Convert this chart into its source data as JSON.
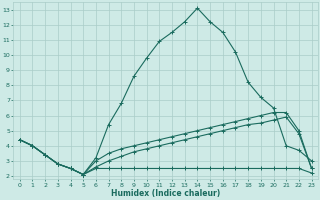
{
  "xlabel": "Humidex (Indice chaleur)",
  "bg_color": "#ceeae6",
  "grid_color": "#aacdc8",
  "line_color": "#1a6b5e",
  "xlim": [
    -0.5,
    23.5
  ],
  "ylim": [
    1.8,
    13.5
  ],
  "xticks": [
    0,
    1,
    2,
    3,
    4,
    5,
    6,
    7,
    8,
    9,
    10,
    11,
    12,
    13,
    14,
    15,
    16,
    17,
    18,
    19,
    20,
    21,
    22,
    23
  ],
  "yticks": [
    2,
    3,
    4,
    5,
    6,
    7,
    8,
    9,
    10,
    11,
    12,
    13
  ],
  "line1_x": [
    0,
    1,
    2,
    3,
    4,
    5,
    6,
    7,
    8,
    9,
    10,
    11,
    12,
    13,
    14,
    15,
    16,
    17,
    18,
    19,
    20,
    21,
    22,
    23
  ],
  "line1_y": [
    4.4,
    4.0,
    3.4,
    2.8,
    2.5,
    2.1,
    3.2,
    5.4,
    6.8,
    8.6,
    9.8,
    10.9,
    11.5,
    12.2,
    13.1,
    12.2,
    11.5,
    10.2,
    8.2,
    7.2,
    6.5,
    4.0,
    3.7,
    3.0
  ],
  "line2_x": [
    0,
    1,
    2,
    3,
    4,
    5,
    6,
    7,
    8,
    9,
    10,
    11,
    12,
    13,
    14,
    15,
    16,
    17,
    18,
    19,
    20,
    21,
    22,
    23
  ],
  "line2_y": [
    4.4,
    4.0,
    3.4,
    2.8,
    2.5,
    2.1,
    2.5,
    2.5,
    2.5,
    2.5,
    2.5,
    2.5,
    2.5,
    2.5,
    2.5,
    2.5,
    2.5,
    2.5,
    2.5,
    2.5,
    2.5,
    2.5,
    2.5,
    2.2
  ],
  "line3_x": [
    0,
    1,
    2,
    3,
    4,
    5,
    6,
    7,
    8,
    9,
    10,
    11,
    12,
    13,
    14,
    15,
    16,
    17,
    18,
    19,
    20,
    21,
    22,
    23
  ],
  "line3_y": [
    4.4,
    4.0,
    3.4,
    2.8,
    2.5,
    2.1,
    2.6,
    3.0,
    3.3,
    3.6,
    3.8,
    4.0,
    4.2,
    4.4,
    4.6,
    4.8,
    5.0,
    5.2,
    5.4,
    5.5,
    5.7,
    5.9,
    4.8,
    2.5
  ],
  "line4_x": [
    0,
    1,
    2,
    3,
    4,
    5,
    6,
    7,
    8,
    9,
    10,
    11,
    12,
    13,
    14,
    15,
    16,
    17,
    18,
    19,
    20,
    21,
    22,
    23
  ],
  "line4_y": [
    4.4,
    4.0,
    3.4,
    2.8,
    2.5,
    2.1,
    3.0,
    3.5,
    3.8,
    4.0,
    4.2,
    4.4,
    4.6,
    4.8,
    5.0,
    5.2,
    5.4,
    5.6,
    5.8,
    6.0,
    6.2,
    6.2,
    5.0,
    2.5
  ],
  "marker_x1": [
    0,
    1,
    2,
    3,
    5,
    6,
    7,
    8,
    9,
    10,
    11,
    12,
    13,
    14,
    15,
    16,
    17,
    18,
    19,
    20,
    21,
    22,
    23
  ],
  "marker_y1": [
    4.4,
    4.0,
    3.4,
    2.8,
    2.1,
    3.2,
    5.4,
    6.8,
    8.6,
    9.8,
    10.9,
    11.5,
    12.2,
    13.1,
    12.2,
    11.5,
    10.2,
    8.2,
    7.2,
    6.5,
    4.0,
    3.7,
    3.0
  ],
  "marker_x2": [
    0,
    1,
    2,
    3,
    4,
    5,
    6,
    23
  ],
  "marker_y2": [
    4.4,
    4.0,
    3.4,
    2.8,
    2.5,
    2.1,
    2.5,
    2.2
  ],
  "marker_x3": [
    0,
    1,
    2,
    3,
    4,
    5,
    6,
    7,
    21,
    22,
    23
  ],
  "marker_y3": [
    4.4,
    4.0,
    3.4,
    2.8,
    2.5,
    2.1,
    2.6,
    3.0,
    5.9,
    4.8,
    2.5
  ],
  "marker_x4": [
    0,
    1,
    2,
    3,
    4,
    5,
    6,
    7,
    20,
    21,
    22,
    23
  ],
  "marker_y4": [
    4.4,
    4.0,
    3.4,
    2.8,
    2.5,
    2.1,
    3.0,
    3.5,
    6.2,
    6.2,
    5.0,
    2.5
  ]
}
